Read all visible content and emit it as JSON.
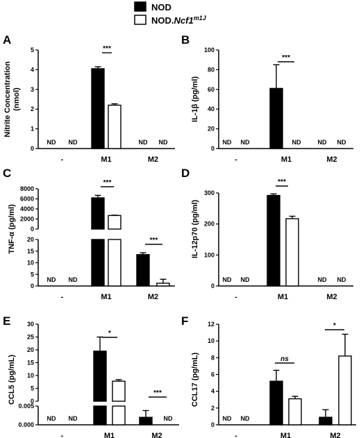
{
  "legend": {
    "items": [
      {
        "label": "NOD",
        "fill": "#000000"
      },
      {
        "label_main": "NOD.",
        "label_italic": "Ncf1",
        "label_sup": "m1J",
        "fill": "#ffffff"
      }
    ]
  },
  "chart_data": [
    {
      "id": "A",
      "type": "bar",
      "ylabel": "Nitrite Concentration (nmol)",
      "ylabel_lines": [
        "Nitrite Concentration",
        "(nmol)"
      ],
      "categories": [
        "-",
        "M1",
        "M2"
      ],
      "ylim": [
        0,
        5
      ],
      "yticks": [
        0,
        1,
        2,
        3,
        4,
        5
      ],
      "series": [
        {
          "fill": "#000000",
          "values": [
            null,
            4.05,
            null
          ],
          "errors": [
            null,
            0.1,
            null
          ]
        },
        {
          "fill": "#ffffff",
          "values": [
            null,
            2.2,
            null
          ],
          "errors": [
            null,
            0.07,
            null
          ]
        }
      ],
      "nd_label": "ND",
      "nd": [
        [
          0,
          0
        ],
        [
          0,
          1
        ],
        [
          2,
          0
        ],
        [
          2,
          1
        ]
      ],
      "significance": [
        {
          "category": 1,
          "label": "***"
        }
      ]
    },
    {
      "id": "B",
      "type": "bar",
      "ylabel": "IL-1β (pg/ml)",
      "categories": [
        "-",
        "M1",
        "M2"
      ],
      "ylim": [
        0,
        100
      ],
      "yticks": [
        0,
        20,
        40,
        60,
        80,
        100
      ],
      "series": [
        {
          "fill": "#000000",
          "values": [
            null,
            61,
            null
          ],
          "errors": [
            null,
            24,
            null
          ]
        },
        {
          "fill": "#ffffff",
          "values": [
            null,
            null,
            null
          ],
          "errors": [
            null,
            null,
            null
          ]
        }
      ],
      "nd_label": "ND",
      "nd": [
        [
          0,
          0
        ],
        [
          0,
          1
        ],
        [
          1,
          1
        ],
        [
          2,
          0
        ],
        [
          2,
          1
        ]
      ],
      "significance": [
        {
          "category": 1,
          "label": "***"
        }
      ]
    },
    {
      "id": "C",
      "type": "bar",
      "ylabel": "TNF-α (pg/ml)",
      "categories": [
        "-",
        "M1",
        "M2"
      ],
      "axis_break": true,
      "upper_ylim": [
        0,
        8000
      ],
      "upper_yticks": [
        0,
        2000,
        4000,
        6000,
        8000
      ],
      "lower_ylim": [
        0,
        20
      ],
      "lower_yticks": [
        0,
        5,
        10,
        15,
        20
      ],
      "series": [
        {
          "fill": "#000000",
          "values": [
            null,
            6200,
            13.5
          ],
          "errors": [
            null,
            500,
            0.8
          ]
        },
        {
          "fill": "#ffffff",
          "values": [
            null,
            2700,
            1.2
          ],
          "errors": [
            null,
            60,
            1.7
          ]
        }
      ],
      "nd_label": "ND",
      "nd": [
        [
          0,
          0
        ],
        [
          0,
          1
        ]
      ],
      "significance": [
        {
          "category": 1,
          "label": "***"
        },
        {
          "category": 2,
          "label": "***"
        }
      ]
    },
    {
      "id": "D",
      "type": "bar",
      "ylabel": "IL-12p70 (pg/ml)",
      "categories": [
        "-",
        "M1",
        "M2"
      ],
      "ylim": [
        0,
        300
      ],
      "yticks": [
        0,
        100,
        200,
        300
      ],
      "series": [
        {
          "fill": "#000000",
          "values": [
            null,
            292,
            null
          ],
          "errors": [
            null,
            5,
            null
          ]
        },
        {
          "fill": "#ffffff",
          "values": [
            null,
            217,
            null
          ],
          "errors": [
            null,
            8,
            null
          ]
        }
      ],
      "nd_label": "ND",
      "nd": [
        [
          0,
          0
        ],
        [
          0,
          1
        ],
        [
          2,
          0
        ],
        [
          2,
          1
        ]
      ],
      "significance": [
        {
          "category": 1,
          "label": "***"
        }
      ]
    },
    {
      "id": "E",
      "type": "bar",
      "ylabel": "CCL5 (pg/mL)",
      "categories": [
        "-",
        "M1",
        "M2"
      ],
      "axis_break": true,
      "upper_ylim": [
        0,
        30
      ],
      "upper_yticks": [
        0,
        5,
        10,
        15,
        20,
        25,
        30
      ],
      "lower_ylim": [
        0,
        0.005
      ],
      "lower_yticks": [
        "0.000",
        "0.005"
      ],
      "series": [
        {
          "fill": "#000000",
          "values": [
            null,
            19.5,
            0.002
          ],
          "errors": [
            null,
            5.5,
            0.0018
          ]
        },
        {
          "fill": "#ffffff",
          "values": [
            null,
            7.8,
            null
          ],
          "errors": [
            null,
            0.6,
            null
          ]
        }
      ],
      "nd_label": "ND",
      "nd": [
        [
          0,
          0
        ],
        [
          0,
          1
        ],
        [
          2,
          1
        ]
      ],
      "significance": [
        {
          "category": 1,
          "label": "*"
        },
        {
          "category": 2,
          "label": "***"
        }
      ]
    },
    {
      "id": "F",
      "type": "bar",
      "ylabel": "CCL17 (pg/mL)",
      "categories": [
        "-",
        "M1",
        "M2"
      ],
      "ylim": [
        0,
        12
      ],
      "yticks": [
        0,
        2,
        4,
        6,
        8,
        10,
        12
      ],
      "series": [
        {
          "fill": "#000000",
          "values": [
            null,
            5.2,
            0.9
          ],
          "errors": [
            null,
            1.3,
            0.9
          ]
        },
        {
          "fill": "#ffffff",
          "values": [
            null,
            3.1,
            8.2
          ],
          "errors": [
            null,
            0.3,
            2.6
          ]
        }
      ],
      "nd_label": "ND",
      "nd": [
        [
          0,
          0
        ],
        [
          0,
          1
        ]
      ],
      "significance": [
        {
          "category": 1,
          "label": "ns",
          "italic": true
        },
        {
          "category": 2,
          "label": "*"
        }
      ]
    }
  ]
}
